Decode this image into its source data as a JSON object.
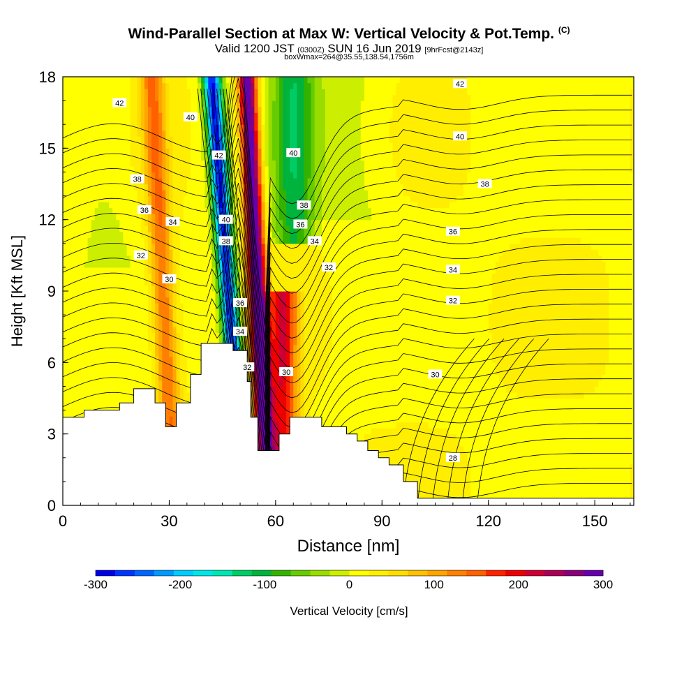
{
  "title": {
    "main": "Wind-Parallel Section at Max W: Vertical Velocity & Pot.Temp.",
    "main_suffix": "(C)",
    "line2_a": "Valid 1200 JST",
    "line2_b": "(0300Z)",
    "line2_c": "SUN 16 Jun 2019",
    "line2_d": "[9hrFcst@2143z]",
    "line3": "boxWmax=264@35.55,138.54,1756m"
  },
  "chart_data": {
    "type": "heatmap",
    "xlabel": "Distance [nm]",
    "ylabel": "Height [Kft MSL]",
    "xlim": [
      0,
      161
    ],
    "ylim": [
      0,
      18
    ],
    "xticks": [
      0,
      30,
      60,
      90,
      120,
      150
    ],
    "yticks": [
      0,
      3,
      6,
      9,
      12,
      15,
      18
    ],
    "colorbar": {
      "label": "Vertical Velocity [cm/s]",
      "range": [
        -300,
        300
      ],
      "ticks": [
        -300,
        -200,
        -100,
        0,
        100,
        200,
        300
      ],
      "colors": [
        "#0000e6",
        "#0033ff",
        "#0066ff",
        "#0099ff",
        "#00ccff",
        "#00e6e6",
        "#00e6b3",
        "#00cc66",
        "#00b33c",
        "#33b300",
        "#66cc00",
        "#99dd00",
        "#ccee00",
        "#ffff00",
        "#ffee00",
        "#ffdd00",
        "#ffc000",
        "#ffa500",
        "#ff8000",
        "#ff6000",
        "#ff2200",
        "#ee0000",
        "#cc0033",
        "#aa0055",
        "#880077",
        "#6600aa"
      ]
    },
    "wind_vertical_velocity_features": [
      {
        "kind": "downdraft",
        "x_center_at_surface": 50,
        "x_center_at_top": 42,
        "min_cm_s": -300,
        "height_range": [
          2.5,
          18
        ]
      },
      {
        "kind": "updraft",
        "x_center_at_surface": 57,
        "x_center_at_top": 52,
        "max_cm_s": 300,
        "height_range": [
          2.5,
          18
        ]
      },
      {
        "kind": "updraft_lower",
        "x_center": 62,
        "max_cm_s": 180,
        "height_range": [
          2.5,
          8
        ]
      },
      {
        "kind": "updraft_band",
        "x_center": 30,
        "max_cm_s": 120,
        "height_range": [
          3,
          18
        ]
      },
      {
        "kind": "downdraft_band",
        "x_center": 65,
        "min_cm_s": -120,
        "height_range": [
          12,
          18
        ]
      }
    ],
    "terrain_kft": [
      [
        0,
        3.7
      ],
      [
        6,
        3.7
      ],
      [
        6,
        4.0
      ],
      [
        16,
        4.0
      ],
      [
        16,
        4.3
      ],
      [
        20,
        4.3
      ],
      [
        20,
        4.9
      ],
      [
        26,
        4.9
      ],
      [
        26,
        4.3
      ],
      [
        29,
        4.3
      ],
      [
        29,
        3.3
      ],
      [
        32,
        3.3
      ],
      [
        32,
        4.3
      ],
      [
        36,
        4.3
      ],
      [
        36,
        5.5
      ],
      [
        39,
        5.5
      ],
      [
        39,
        6.8
      ],
      [
        48,
        6.8
      ],
      [
        48,
        6.5
      ],
      [
        52,
        6.5
      ],
      [
        52,
        5.2
      ],
      [
        53,
        5.2
      ],
      [
        53,
        3.7
      ],
      [
        55,
        3.7
      ],
      [
        55,
        2.3
      ],
      [
        61,
        2.3
      ],
      [
        61,
        3.0
      ],
      [
        64,
        3.0
      ],
      [
        64,
        3.7
      ],
      [
        73,
        3.7
      ],
      [
        73,
        3.3
      ],
      [
        80,
        3.3
      ],
      [
        80,
        3.0
      ],
      [
        83,
        3.0
      ],
      [
        83,
        2.7
      ],
      [
        86,
        2.7
      ],
      [
        86,
        2.3
      ],
      [
        89,
        2.3
      ],
      [
        89,
        2.0
      ],
      [
        92,
        2.0
      ],
      [
        92,
        1.7
      ],
      [
        96,
        1.7
      ],
      [
        96,
        1.0
      ],
      [
        100,
        1.0
      ],
      [
        100,
        0.3
      ],
      [
        161,
        0.3
      ]
    ],
    "theta_contours": [
      {
        "value": 28,
        "label_at": [
          110,
          2.0
        ]
      },
      {
        "value": 30,
        "label_at": [
          105,
          5.5
        ]
      },
      {
        "value": 30,
        "label_at": [
          63,
          5.6
        ]
      },
      {
        "value": 30,
        "label_at": [
          30,
          9.5
        ]
      },
      {
        "value": 32,
        "label_at": [
          52,
          5.8
        ]
      },
      {
        "value": 32,
        "label_at": [
          22,
          10.5
        ]
      },
      {
        "value": 32,
        "label_at": [
          75,
          10.0
        ]
      },
      {
        "value": 32,
        "label_at": [
          110,
          8.6
        ]
      },
      {
        "value": 34,
        "label_at": [
          50,
          7.3
        ]
      },
      {
        "value": 34,
        "label_at": [
          31,
          11.9
        ]
      },
      {
        "value": 34,
        "label_at": [
          71,
          11.1
        ]
      },
      {
        "value": 34,
        "label_at": [
          110,
          9.9
        ]
      },
      {
        "value": 36,
        "label_at": [
          50,
          8.5
        ]
      },
      {
        "value": 36,
        "label_at": [
          23,
          12.4
        ]
      },
      {
        "value": 36,
        "label_at": [
          67,
          11.8
        ]
      },
      {
        "value": 36,
        "label_at": [
          110,
          11.5
        ]
      },
      {
        "value": 38,
        "label_at": [
          46,
          11.1
        ]
      },
      {
        "value": 38,
        "label_at": [
          21,
          13.7
        ]
      },
      {
        "value": 38,
        "label_at": [
          68,
          12.6
        ]
      },
      {
        "value": 38,
        "label_at": [
          119,
          13.5
        ]
      },
      {
        "value": 40,
        "label_at": [
          46,
          12.0
        ]
      },
      {
        "value": 40,
        "label_at": [
          36,
          16.3
        ]
      },
      {
        "value": 40,
        "label_at": [
          65,
          14.8
        ]
      },
      {
        "value": 40,
        "label_at": [
          112,
          15.5
        ]
      },
      {
        "value": 42,
        "label_at": [
          44,
          14.7
        ]
      },
      {
        "value": 42,
        "label_at": [
          16,
          16.9
        ]
      },
      {
        "value": 42,
        "label_at": [
          112,
          17.7
        ]
      }
    ]
  }
}
